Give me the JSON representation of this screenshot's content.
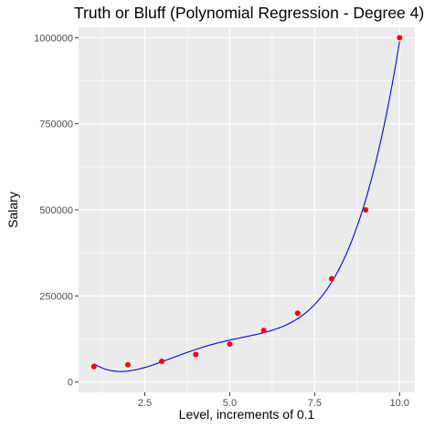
{
  "chart_data": {
    "type": "scatter",
    "title": "Truth or Bluff (Polynomial Regression - Degree 4)",
    "xlabel": "Level, increments of 0.1",
    "ylabel": "Salary",
    "xlim": [
      0.55,
      10.45
    ],
    "ylim": [
      -30000,
      1030000
    ],
    "x_ticks": [
      2.5,
      5.0,
      7.5,
      10.0
    ],
    "x_tick_labels": [
      "2.5",
      "5.0",
      "7.5",
      "10.0"
    ],
    "y_ticks": [
      0,
      250000,
      500000,
      750000,
      1000000
    ],
    "y_tick_labels": [
      "0",
      "250000",
      "500000",
      "750000",
      "1000000"
    ],
    "grid": true,
    "series": [
      {
        "kind": "points",
        "color": "#ff0000",
        "x": [
          1,
          2,
          3,
          4,
          5,
          6,
          7,
          8,
          9,
          10
        ],
        "y": [
          45000,
          50000,
          60000,
          80000,
          110000,
          150000,
          200000,
          300000,
          500000,
          1000000
        ]
      },
      {
        "kind": "line",
        "color": "#0000ff",
        "model": "polynomial degree 4",
        "coefficients": [
          184166.667,
          -211002.331,
          94765.152,
          -15463.287,
          890.152
        ]
      }
    ],
    "panel_background": "#ebebeb",
    "grid_color": "#ffffff"
  }
}
